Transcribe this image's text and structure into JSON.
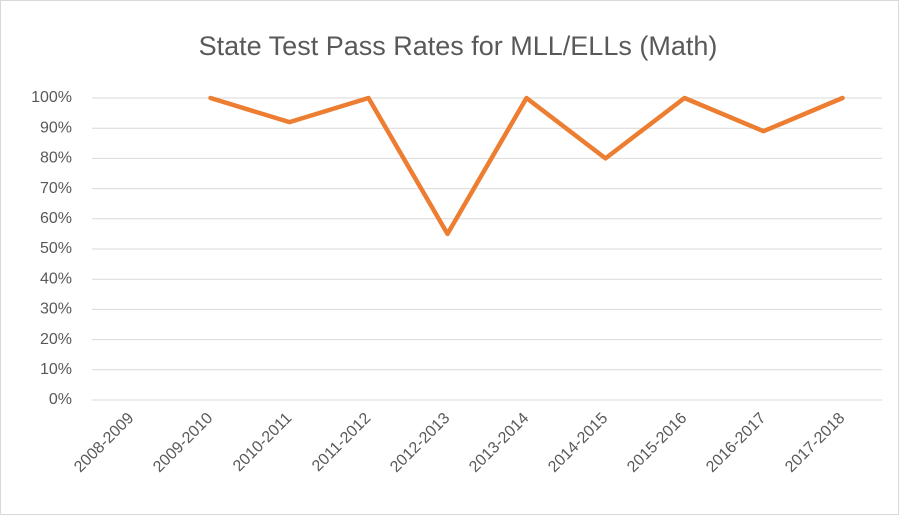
{
  "chart_data": {
    "type": "line",
    "title": "State Test Pass Rates for MLL/ELLs (Math)",
    "categories": [
      "2008-2009",
      "2009-2010",
      "2010-2011",
      "2011-2012",
      "2012-2013",
      "2013-2014",
      "2014-2015",
      "2015-2016",
      "2016-2017",
      "2017-2018"
    ],
    "values": [
      null,
      100,
      92,
      100,
      55,
      100,
      80,
      100,
      89,
      100
    ],
    "color": "#ed7d31",
    "ylim": [
      0,
      100
    ],
    "yticks": [
      {
        "value": 0,
        "label": "0%"
      },
      {
        "value": 10,
        "label": "10%"
      },
      {
        "value": 20,
        "label": "20%"
      },
      {
        "value": 30,
        "label": "30%"
      },
      {
        "value": 40,
        "label": "40%"
      },
      {
        "value": 50,
        "label": "50%"
      },
      {
        "value": 60,
        "label": "60%"
      },
      {
        "value": 70,
        "label": "70%"
      },
      {
        "value": 80,
        "label": "80%"
      },
      {
        "value": 90,
        "label": "90%"
      },
      {
        "value": 100,
        "label": "100%"
      }
    ],
    "grid": true
  }
}
